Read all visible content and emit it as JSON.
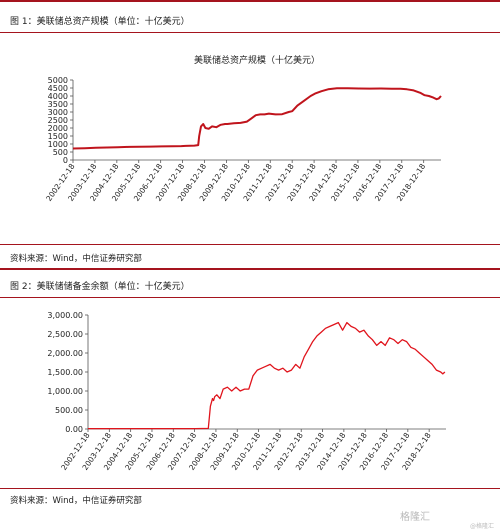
{
  "figures": [
    {
      "caption": "图 1：美联储总资产规模（单位：十亿美元）",
      "source": "资料来源：Wind，中信证券研究部"
    },
    {
      "caption": "图 2：美联储储备金余额（单位：十亿美元）",
      "source": "资料来源：Wind，中信证券研究部"
    }
  ],
  "watermark": "格隆汇",
  "watermark_small": "@格隆汇",
  "chart_data": [
    {
      "type": "line",
      "title": "美联储总资产规模（十亿美元）",
      "xlabel": "",
      "ylabel": "",
      "x_tick_labels": [
        "2002-12-18",
        "2003-12-18",
        "2004-12-18",
        "2005-12-18",
        "2006-12-18",
        "2007-12-18",
        "2008-12-18",
        "2009-12-18",
        "2010-12-18",
        "2011-12-18",
        "2012-12-18",
        "2013-12-18",
        "2014-12-18",
        "2015-12-18",
        "2016-12-18",
        "2017-12-18",
        "2018-12-18"
      ],
      "y_tick_labels": [
        "0",
        "500",
        "1000",
        "1500",
        "2000",
        "2500",
        "3000",
        "3500",
        "4000",
        "4500",
        "5000"
      ],
      "xlim": [
        2002.96,
        2019.75
      ],
      "ylim": [
        0,
        5000
      ],
      "grid": false,
      "legend": "none",
      "color": "#c0141c",
      "series": [
        {
          "x": [
            2002.96,
            2003.5,
            2004.0,
            2004.5,
            2005.0,
            2005.5,
            2006.0,
            2006.5,
            2007.0,
            2007.5,
            2007.9,
            2008.1,
            2008.5,
            2008.67,
            2008.72,
            2008.8,
            2008.9,
            2009.0,
            2009.15,
            2009.3,
            2009.5,
            2009.7,
            2009.9,
            2010.0,
            2010.3,
            2010.6,
            2010.9,
            2011.1,
            2011.3,
            2011.5,
            2011.7,
            2011.9,
            2012.2,
            2012.5,
            2012.8,
            2012.96,
            2013.2,
            2013.5,
            2013.8,
            2014.0,
            2014.3,
            2014.6,
            2014.8,
            2015.0,
            2015.5,
            2016.0,
            2016.5,
            2017.0,
            2017.5,
            2017.9,
            2018.2,
            2018.5,
            2018.8,
            2019.0,
            2019.2,
            2019.4,
            2019.55,
            2019.65,
            2019.75
          ],
          "y": [
            720,
            740,
            760,
            780,
            800,
            820,
            830,
            840,
            850,
            860,
            870,
            880,
            900,
            930,
            1500,
            2100,
            2250,
            2000,
            1950,
            2100,
            2050,
            2200,
            2250,
            2250,
            2300,
            2320,
            2400,
            2600,
            2800,
            2850,
            2850,
            2900,
            2850,
            2860,
            3000,
            3050,
            3400,
            3700,
            4000,
            4150,
            4300,
            4420,
            4450,
            4480,
            4480,
            4470,
            4460,
            4470,
            4450,
            4450,
            4420,
            4350,
            4200,
            4050,
            4000,
            3900,
            3800,
            3850,
            4000
          ]
        }
      ]
    },
    {
      "type": "line",
      "title": "",
      "xlabel": "",
      "ylabel": "",
      "x_tick_labels": [
        "2002-12-18",
        "2003-12-18",
        "2004-12-18",
        "2005-12-18",
        "2006-12-18",
        "2007-12-18",
        "2008-12-18",
        "2009-12-18",
        "2010-12-18",
        "2011-12-18",
        "2012-12-18",
        "2013-12-18",
        "2014-12-18",
        "2015-12-18",
        "2016-12-18",
        "2017-12-18",
        "2018-12-18"
      ],
      "y_tick_labels": [
        "0.00",
        "500.00",
        "1,000.00",
        "1,500.00",
        "2,000.00",
        "2,500.00",
        "3,000.00"
      ],
      "xlim": [
        2002.96,
        2019.75
      ],
      "ylim": [
        0,
        3000
      ],
      "grid": false,
      "legend": "none",
      "color": "#e0141c",
      "series": [
        {
          "x": [
            2002.96,
            2004.0,
            2005.0,
            2006.0,
            2007.0,
            2008.0,
            2008.6,
            2008.7,
            2008.8,
            2008.85,
            2008.9,
            2009.0,
            2009.15,
            2009.3,
            2009.5,
            2009.7,
            2009.9,
            2010.1,
            2010.3,
            2010.5,
            2010.7,
            2010.9,
            2011.1,
            2011.3,
            2011.5,
            2011.7,
            2011.9,
            2012.1,
            2012.3,
            2012.5,
            2012.7,
            2012.9,
            2013.1,
            2013.3,
            2013.5,
            2013.7,
            2013.9,
            2014.1,
            2014.3,
            2014.5,
            2014.7,
            2014.9,
            2015.1,
            2015.3,
            2015.5,
            2015.7,
            2015.9,
            2016.1,
            2016.3,
            2016.5,
            2016.7,
            2016.9,
            2017.1,
            2017.3,
            2017.5,
            2017.7,
            2017.9,
            2018.1,
            2018.3,
            2018.5,
            2018.7,
            2018.9,
            2019.1,
            2019.3,
            2019.5,
            2019.6,
            2019.7
          ],
          "y": [
            10,
            10,
            10,
            10,
            10,
            10,
            15,
            600,
            800,
            750,
            850,
            900,
            800,
            1050,
            1100,
            1000,
            1100,
            1000,
            1050,
            1050,
            1400,
            1550,
            1600,
            1650,
            1700,
            1600,
            1550,
            1600,
            1500,
            1550,
            1700,
            1600,
            1900,
            2100,
            2300,
            2450,
            2550,
            2650,
            2700,
            2750,
            2800,
            2600,
            2800,
            2700,
            2650,
            2550,
            2600,
            2450,
            2350,
            2200,
            2300,
            2200,
            2400,
            2350,
            2250,
            2350,
            2300,
            2150,
            2100,
            2000,
            1900,
            1800,
            1700,
            1550,
            1500,
            1450,
            1500
          ]
        }
      ]
    }
  ]
}
